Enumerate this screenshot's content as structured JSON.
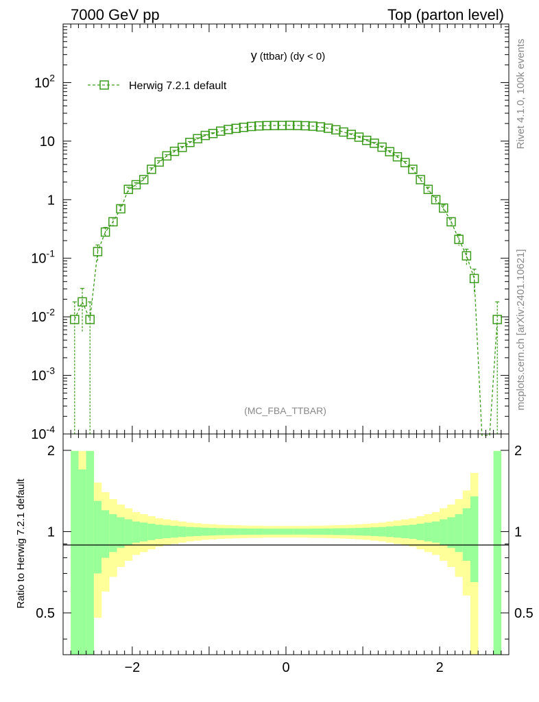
{
  "header": {
    "left": "7000 GeV pp",
    "right": "Top (parton level)"
  },
  "side_labels": {
    "rivet": "Rivet 4.1.0,  100k events",
    "mcplots": "mcplots.cern.ch [arXiv:2401.10621]"
  },
  "colors": {
    "mc_line": "#3a9a1a",
    "band_inner": "#99ff99",
    "band_outer": "#ffff99",
    "axis": "#000000",
    "grey_text": "#888888"
  },
  "chart_data": [
    {
      "type": "line",
      "title": "y (ttbar) (dy < 0)",
      "title_main": "y",
      "title_sub": "(ttbar) (dy < 0)",
      "analysis_label": "(MC_FBA_TTBAR)",
      "legend": [
        {
          "name": "Herwig 7.2.1 default",
          "marker": "open-square",
          "linestyle": "dashed"
        }
      ],
      "legend_position": "top-left",
      "xlim": [
        -2.9,
        2.9
      ],
      "ylim": [
        0.0001,
        1000
      ],
      "yscale": "log",
      "ytick_labels": [
        "10^{-4}",
        "10^{-3}",
        "10^{-2}",
        "10^{-1}",
        "1",
        "10",
        "10^{2}"
      ],
      "series": [
        {
          "name": "Herwig 7.2.1 default",
          "x": [
            -2.75,
            -2.65,
            -2.55,
            -2.45,
            -2.35,
            -2.25,
            -2.15,
            -2.05,
            -1.95,
            -1.85,
            -1.75,
            -1.65,
            -1.55,
            -1.45,
            -1.35,
            -1.25,
            -1.15,
            -1.05,
            -0.95,
            -0.85,
            -0.75,
            -0.65,
            -0.55,
            -0.45,
            -0.35,
            -0.25,
            -0.15,
            -0.05,
            0.05,
            0.15,
            0.25,
            0.35,
            0.45,
            0.55,
            0.65,
            0.75,
            0.85,
            0.95,
            1.05,
            1.15,
            1.25,
            1.35,
            1.45,
            1.55,
            1.65,
            1.75,
            1.85,
            1.95,
            2.05,
            2.15,
            2.25,
            2.35,
            2.45,
            2.55,
            2.65,
            2.75
          ],
          "y": [
            0.009,
            0.018,
            0.009,
            0.13,
            0.28,
            0.42,
            0.7,
            1.5,
            1.8,
            2.2,
            3.3,
            4.4,
            5.6,
            6.7,
            7.8,
            9.5,
            11.0,
            12.5,
            13.5,
            14.8,
            15.8,
            16.5,
            17.2,
            17.8,
            18.2,
            18.4,
            18.5,
            18.5,
            18.6,
            18.5,
            18.3,
            18.0,
            17.5,
            16.6,
            15.6,
            14.3,
            13.0,
            11.7,
            10.3,
            9.2,
            7.9,
            6.6,
            5.4,
            4.3,
            3.3,
            2.2,
            1.5,
            1.0,
            0.72,
            0.42,
            0.21,
            0.11,
            0.045,
            0.0,
            0.0,
            0.009
          ],
          "yerr_rel": [
            1.0,
            0.7,
            1.0,
            0.3,
            0.2,
            0.17,
            0.13,
            0.09,
            0.08,
            0.07,
            0.06,
            0.05,
            0.045,
            0.04,
            0.037,
            0.033,
            0.03,
            0.028,
            0.027,
            0.026,
            0.025,
            0.025,
            0.024,
            0.024,
            0.024,
            0.024,
            0.024,
            0.024,
            0.024,
            0.024,
            0.024,
            0.024,
            0.024,
            0.025,
            0.025,
            0.026,
            0.027,
            0.028,
            0.03,
            0.032,
            0.036,
            0.04,
            0.045,
            0.05,
            0.06,
            0.07,
            0.09,
            0.11,
            0.13,
            0.17,
            0.22,
            0.3,
            0.45,
            0.0,
            0.0,
            1.0
          ]
        }
      ]
    },
    {
      "type": "area",
      "ylabel": "Ratio to Herwig 7.2.1 default",
      "xlim": [
        -2.9,
        2.9
      ],
      "ylim": [
        0.35,
        2.3
      ],
      "yscale": "log",
      "xtick_labels": [
        "−2",
        "0",
        "2"
      ],
      "ytick_labels": [
        "0.5",
        "1",
        "2"
      ],
      "x_edges": [
        -2.8,
        -2.7,
        -2.6,
        -2.5,
        -2.4,
        -2.3,
        -2.2,
        -2.1,
        -2.0,
        -1.9,
        -1.8,
        -1.7,
        -1.6,
        -1.5,
        -1.4,
        -1.3,
        -1.2,
        -1.1,
        -1.0,
        -0.9,
        -0.8,
        -0.7,
        -0.6,
        -0.5,
        -0.4,
        -0.3,
        -0.2,
        -0.1,
        0.0,
        0.1,
        0.2,
        0.3,
        0.4,
        0.5,
        0.6,
        0.7,
        0.8,
        0.9,
        1.0,
        1.1,
        1.2,
        1.3,
        1.4,
        1.5,
        1.6,
        1.7,
        1.8,
        1.9,
        2.0,
        2.1,
        2.2,
        2.3,
        2.4,
        2.5,
        2.6,
        2.7,
        2.8
      ],
      "band_inner_half": [
        0.99,
        0.7,
        0.99,
        0.3,
        0.2,
        0.16,
        0.13,
        0.11,
        0.09,
        0.08,
        0.07,
        0.06,
        0.055,
        0.05,
        0.045,
        0.04,
        0.037,
        0.034,
        0.032,
        0.03,
        0.029,
        0.028,
        0.027,
        0.026,
        0.026,
        0.025,
        0.025,
        0.025,
        0.025,
        0.025,
        0.025,
        0.026,
        0.026,
        0.027,
        0.028,
        0.029,
        0.03,
        0.032,
        0.034,
        0.037,
        0.04,
        0.045,
        0.05,
        0.055,
        0.06,
        0.07,
        0.08,
        0.09,
        0.11,
        0.13,
        0.16,
        0.22,
        0.35,
        0.0,
        0.0,
        0.99
      ],
      "band_outer_half": [
        0.99,
        0.99,
        0.99,
        0.52,
        0.4,
        0.32,
        0.26,
        0.22,
        0.18,
        0.16,
        0.14,
        0.12,
        0.11,
        0.1,
        0.09,
        0.08,
        0.074,
        0.068,
        0.064,
        0.06,
        0.058,
        0.056,
        0.054,
        0.052,
        0.052,
        0.05,
        0.05,
        0.05,
        0.05,
        0.05,
        0.05,
        0.052,
        0.052,
        0.054,
        0.056,
        0.058,
        0.06,
        0.064,
        0.068,
        0.074,
        0.08,
        0.09,
        0.1,
        0.11,
        0.12,
        0.14,
        0.16,
        0.18,
        0.22,
        0.26,
        0.32,
        0.42,
        0.65,
        0.0,
        0.0,
        0.99
      ]
    }
  ]
}
